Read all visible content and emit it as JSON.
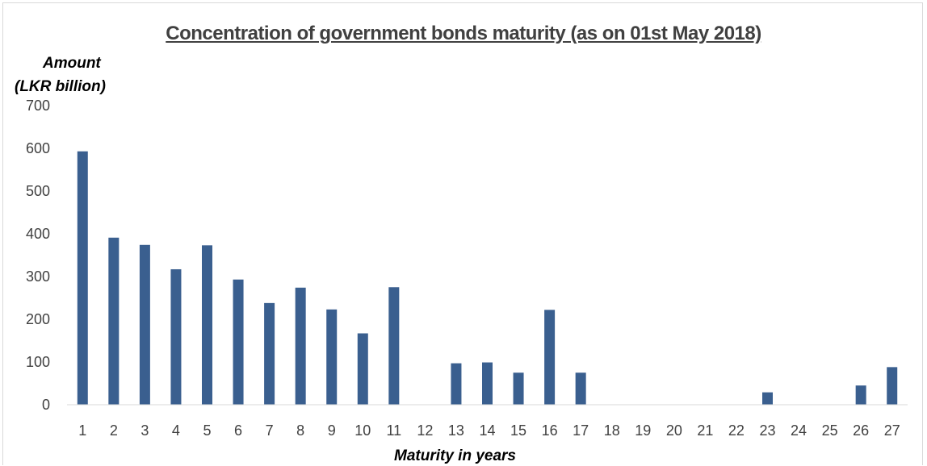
{
  "chart_data": {
    "type": "bar",
    "title": "Concentration of government bonds maturity (as on 01st May 2018)",
    "ylabel_lines": [
      "Amount",
      "(LKR billion)"
    ],
    "xlabel": "Maturity in years",
    "ylim": [
      0,
      700
    ],
    "yticks": [
      0,
      100,
      200,
      300,
      400,
      500,
      600,
      700
    ],
    "grid": false,
    "legend": "none",
    "bar_color": "#3a5f8f",
    "categories": [
      "1",
      "2",
      "3",
      "4",
      "5",
      "6",
      "7",
      "8",
      "9",
      "10",
      "11",
      "12",
      "13",
      "14",
      "15",
      "16",
      "17",
      "18",
      "19",
      "20",
      "21",
      "22",
      "23",
      "24",
      "25",
      "26",
      "27"
    ],
    "values": [
      593,
      391,
      374,
      317,
      373,
      293,
      238,
      274,
      223,
      167,
      275,
      0,
      97,
      99,
      75,
      222,
      75,
      0,
      0,
      0,
      0,
      0,
      29,
      0,
      0,
      45,
      88
    ]
  }
}
